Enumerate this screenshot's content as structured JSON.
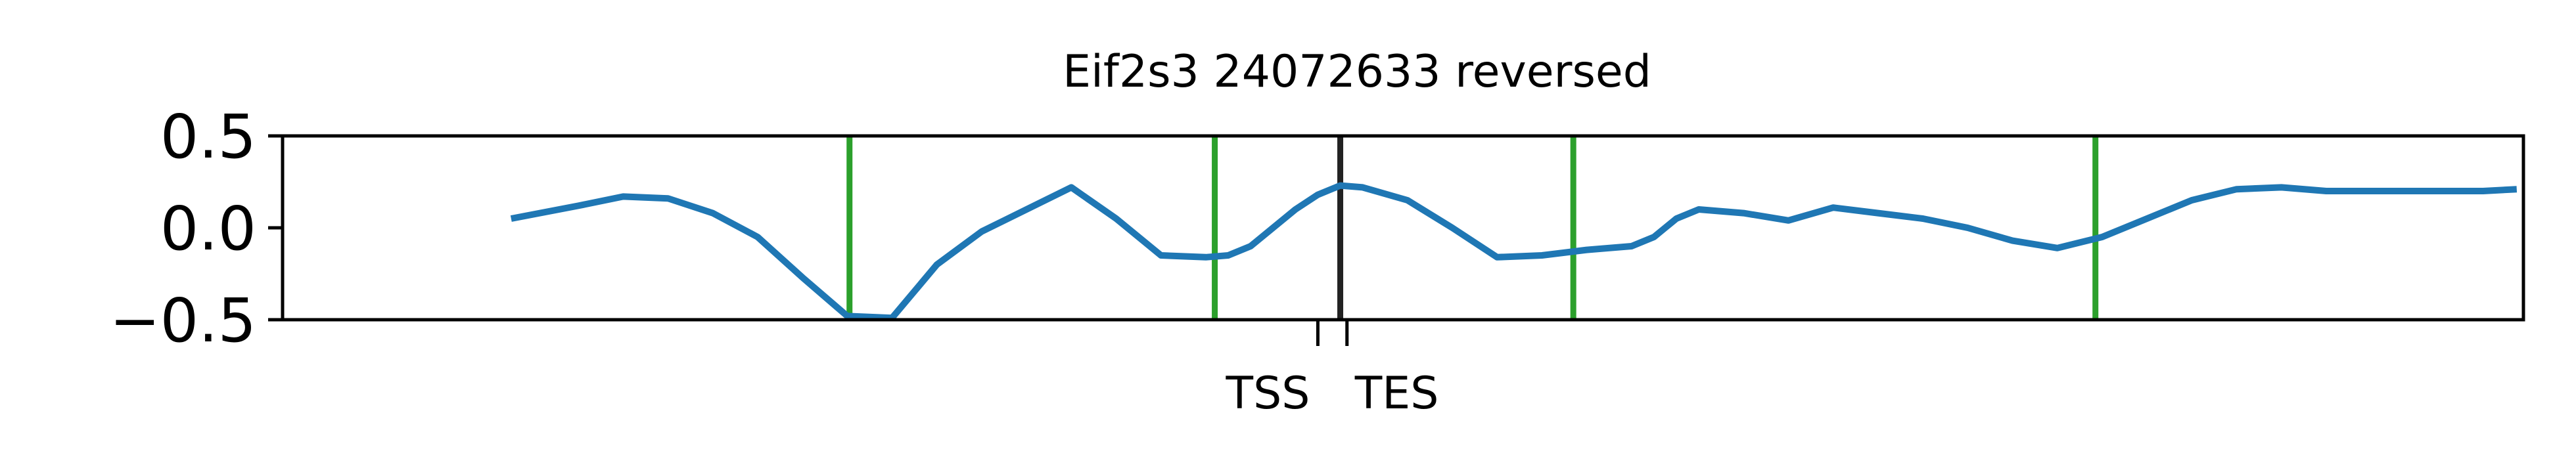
{
  "chart_data": {
    "type": "line",
    "title": "Eif2s3 24072633 reversed",
    "xlabel": "",
    "ylabel": "",
    "ylim": [
      -0.5,
      0.5
    ],
    "xlim": [
      0,
      1
    ],
    "yticks": [
      {
        "value": 0.5,
        "label": "0.5"
      },
      {
        "value": 0.0,
        "label": "0.0"
      },
      {
        "value": -0.5,
        "label": "−0.5"
      }
    ],
    "xticks": [
      {
        "value": 0.462,
        "label": "TSS"
      },
      {
        "value": 0.475,
        "label": "TES"
      }
    ],
    "grid": false,
    "legend": "none",
    "series": [
      {
        "color": "#1f77b4",
        "x": [
          0.102,
          0.132,
          0.152,
          0.172,
          0.192,
          0.212,
          0.232,
          0.252,
          0.272,
          0.292,
          0.312,
          0.332,
          0.352,
          0.372,
          0.392,
          0.412,
          0.422,
          0.432,
          0.442,
          0.452,
          0.462,
          0.472,
          0.482,
          0.502,
          0.522,
          0.542,
          0.562,
          0.582,
          0.602,
          0.612,
          0.622,
          0.632,
          0.652,
          0.672,
          0.692,
          0.712,
          0.732,
          0.752,
          0.772,
          0.792,
          0.812,
          0.832,
          0.852,
          0.872,
          0.892,
          0.912,
          0.932,
          0.952,
          0.972,
          0.982,
          0.997
        ],
        "values": [
          0.05,
          0.12,
          0.17,
          0.16,
          0.08,
          -0.05,
          -0.27,
          -0.48,
          -0.49,
          -0.2,
          -0.02,
          0.1,
          0.22,
          0.05,
          -0.15,
          -0.16,
          -0.15,
          -0.1,
          0.0,
          0.1,
          0.18,
          0.23,
          0.22,
          0.15,
          0.0,
          -0.16,
          -0.15,
          -0.12,
          -0.1,
          -0.05,
          0.05,
          0.1,
          0.08,
          0.04,
          0.11,
          0.08,
          0.05,
          0.0,
          -0.07,
          -0.11,
          -0.05,
          0.05,
          0.15,
          0.21,
          0.22,
          0.2,
          0.2,
          0.2,
          0.2,
          0.2,
          0.21
        ]
      }
    ],
    "vertical_lines": [
      {
        "x": 0.253,
        "color": "#2ca02c"
      },
      {
        "x": 0.416,
        "color": "#2ca02c"
      },
      {
        "x": 0.472,
        "color": "#222222"
      },
      {
        "x": 0.576,
        "color": "#2ca02c"
      },
      {
        "x": 0.809,
        "color": "#2ca02c"
      }
    ]
  }
}
